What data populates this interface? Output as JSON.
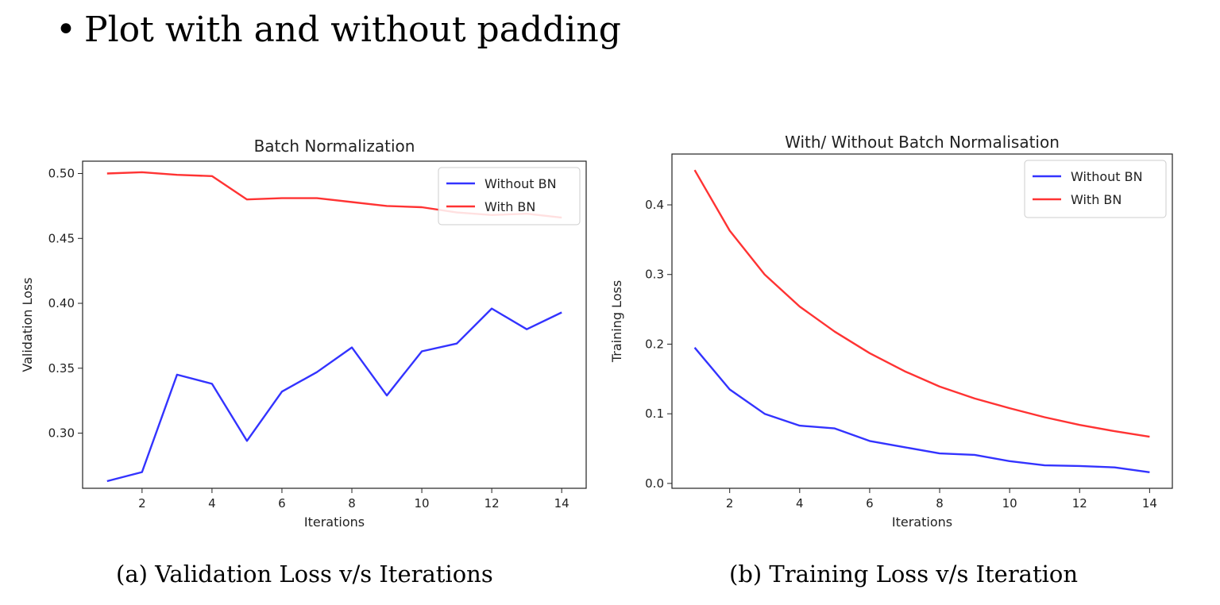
{
  "heading": {
    "bullet": "•",
    "text": "Plot with and without padding"
  },
  "captions": {
    "a": "(a) Validation Loss v/s Iterations",
    "b": "(b) Training Loss v/s Iteration"
  },
  "chart_data": [
    {
      "id": "a",
      "type": "line",
      "title": "Batch Normalization",
      "xlabel": "Iterations",
      "ylabel": "Validation Loss",
      "xlim": [
        0.3,
        14.7
      ],
      "ylim": [
        0.2575,
        0.5095
      ],
      "xticks": [
        2,
        4,
        6,
        8,
        10,
        12,
        14
      ],
      "yticks": [
        0.3,
        0.35,
        0.4,
        0.45,
        0.5
      ],
      "ytick_labels": [
        "0.30",
        "0.35",
        "0.40",
        "0.45",
        "0.50"
      ],
      "legend_position": "top-right",
      "x": [
        1,
        2,
        3,
        4,
        5,
        6,
        7,
        8,
        9,
        10,
        11,
        12,
        13,
        14
      ],
      "series": [
        {
          "name": "Without BN",
          "color": "#3333ff",
          "values": [
            0.263,
            0.27,
            0.345,
            0.338,
            0.294,
            0.332,
            0.347,
            0.366,
            0.329,
            0.363,
            0.369,
            0.396,
            0.38,
            0.393
          ]
        },
        {
          "name": "With BN",
          "color": "#ff3333",
          "values": [
            0.5,
            0.501,
            0.499,
            0.498,
            0.48,
            0.481,
            0.481,
            0.478,
            0.475,
            0.474,
            0.47,
            0.468,
            0.469,
            0.466
          ]
        }
      ]
    },
    {
      "id": "b",
      "type": "line",
      "title": "With/ Without Batch Normalisation",
      "xlabel": "Iterations",
      "ylabel": "Training Loss",
      "xlim": [
        0.35,
        14.65
      ],
      "ylim": [
        -0.007,
        0.473
      ],
      "xticks": [
        2,
        4,
        6,
        8,
        10,
        12,
        14
      ],
      "yticks": [
        0.0,
        0.1,
        0.2,
        0.3,
        0.4
      ],
      "ytick_labels": [
        "0.0",
        "0.1",
        "0.2",
        "0.3",
        "0.4"
      ],
      "legend_position": "top-right",
      "x": [
        1,
        2,
        3,
        4,
        5,
        6,
        7,
        8,
        9,
        10,
        11,
        12,
        13,
        14
      ],
      "series": [
        {
          "name": "Without BN",
          "color": "#3333ff",
          "values": [
            0.195,
            0.135,
            0.1,
            0.083,
            0.079,
            0.061,
            0.052,
            0.043,
            0.041,
            0.032,
            0.026,
            0.025,
            0.023,
            0.016
          ]
        },
        {
          "name": "With BN",
          "color": "#ff3333",
          "values": [
            0.45,
            0.363,
            0.3,
            0.254,
            0.218,
            0.187,
            0.161,
            0.139,
            0.122,
            0.108,
            0.095,
            0.084,
            0.075,
            0.067
          ]
        }
      ]
    }
  ]
}
